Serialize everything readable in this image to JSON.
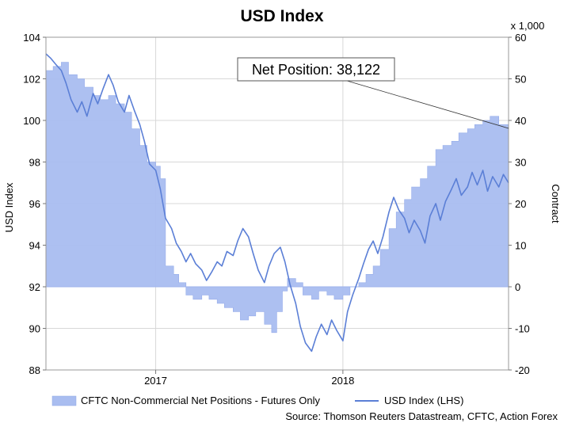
{
  "chart_data": {
    "type": "area+line",
    "title": "USD Index",
    "y_left_label": "USD Index",
    "y_right_label": "Contract",
    "y_right_multiplier": "x 1,000",
    "ylim_left": [
      88,
      104
    ],
    "ylim_right": [
      -20,
      60
    ],
    "y_left_ticks": [
      88,
      90,
      92,
      94,
      96,
      98,
      100,
      102,
      104
    ],
    "y_right_ticks": [
      -20,
      -10,
      0,
      10,
      20,
      30,
      40,
      50,
      60
    ],
    "x_range": [
      "2016-06-01",
      "2018-11-20"
    ],
    "x_ticks": [
      {
        "date": "2017-01-01",
        "label": "2017"
      },
      {
        "date": "2018-01-01",
        "label": "2018"
      }
    ],
    "grid": true,
    "legend_position": "bottom",
    "annotation": {
      "text": "Net Position: 38,122",
      "points_to": {
        "date": "2018-11-20",
        "value": 38.1
      }
    },
    "source": "Source: Thomson Reuters Datastream, CFTC, Action Forex",
    "series": [
      {
        "name": "CFTC Non-Commercial Net Positions - Futures Only",
        "axis": "right",
        "style": "area",
        "color": "#a9bdf0",
        "points": [
          [
            "2016-06-01",
            52
          ],
          [
            "2016-06-15",
            53
          ],
          [
            "2016-07-01",
            54
          ],
          [
            "2016-07-15",
            51
          ],
          [
            "2016-08-01",
            50
          ],
          [
            "2016-08-15",
            48
          ],
          [
            "2016-09-01",
            46
          ],
          [
            "2016-09-15",
            45
          ],
          [
            "2016-10-01",
            46
          ],
          [
            "2016-10-15",
            44
          ],
          [
            "2016-11-01",
            42
          ],
          [
            "2016-11-15",
            38
          ],
          [
            "2016-12-01",
            34
          ],
          [
            "2016-12-15",
            30
          ],
          [
            "2017-01-01",
            29
          ],
          [
            "2017-01-10",
            26
          ],
          [
            "2017-01-20",
            5
          ],
          [
            "2017-02-05",
            3
          ],
          [
            "2017-02-15",
            1
          ],
          [
            "2017-03-01",
            -2
          ],
          [
            "2017-03-15",
            -3
          ],
          [
            "2017-04-01",
            -2
          ],
          [
            "2017-04-15",
            -3
          ],
          [
            "2017-05-01",
            -4
          ],
          [
            "2017-05-15",
            -5
          ],
          [
            "2017-06-01",
            -6
          ],
          [
            "2017-06-15",
            -8
          ],
          [
            "2017-07-01",
            -7
          ],
          [
            "2017-07-15",
            -6
          ],
          [
            "2017-08-01",
            -9
          ],
          [
            "2017-08-15",
            -11
          ],
          [
            "2017-08-25",
            -6
          ],
          [
            "2017-09-05",
            -1
          ],
          [
            "2017-09-15",
            2
          ],
          [
            "2017-10-01",
            1
          ],
          [
            "2017-10-15",
            -2
          ],
          [
            "2017-11-01",
            -3
          ],
          [
            "2017-11-15",
            -1
          ],
          [
            "2017-12-01",
            -2
          ],
          [
            "2017-12-15",
            -3
          ],
          [
            "2018-01-01",
            -2
          ],
          [
            "2018-01-15",
            0
          ],
          [
            "2018-02-01",
            1
          ],
          [
            "2018-02-15",
            3
          ],
          [
            "2018-03-01",
            5
          ],
          [
            "2018-03-15",
            9
          ],
          [
            "2018-04-01",
            14
          ],
          [
            "2018-04-15",
            18
          ],
          [
            "2018-05-01",
            21
          ],
          [
            "2018-05-15",
            24
          ],
          [
            "2018-06-01",
            26
          ],
          [
            "2018-06-15",
            29
          ],
          [
            "2018-07-01",
            33
          ],
          [
            "2018-07-15",
            34
          ],
          [
            "2018-08-01",
            35
          ],
          [
            "2018-08-15",
            37
          ],
          [
            "2018-09-01",
            38
          ],
          [
            "2018-09-15",
            39
          ],
          [
            "2018-10-01",
            40
          ],
          [
            "2018-10-15",
            41
          ],
          [
            "2018-11-01",
            39
          ],
          [
            "2018-11-20",
            38
          ]
        ]
      },
      {
        "name": "USD Index (LHS)",
        "axis": "left",
        "style": "line",
        "color": "#5b7fd6",
        "points": [
          [
            "2016-06-01",
            103.2
          ],
          [
            "2016-06-10",
            103.0
          ],
          [
            "2016-06-20",
            102.7
          ],
          [
            "2016-07-01",
            102.4
          ],
          [
            "2016-07-10",
            101.8
          ],
          [
            "2016-07-20",
            101.0
          ],
          [
            "2016-08-01",
            100.4
          ],
          [
            "2016-08-10",
            100.9
          ],
          [
            "2016-08-20",
            100.2
          ],
          [
            "2016-09-01",
            101.3
          ],
          [
            "2016-09-10",
            100.8
          ],
          [
            "2016-09-20",
            101.5
          ],
          [
            "2016-10-01",
            102.2
          ],
          [
            "2016-10-10",
            101.7
          ],
          [
            "2016-10-20",
            100.9
          ],
          [
            "2016-11-01",
            100.4
          ],
          [
            "2016-11-10",
            101.2
          ],
          [
            "2016-11-20",
            100.5
          ],
          [
            "2016-12-01",
            99.8
          ],
          [
            "2016-12-10",
            99.0
          ],
          [
            "2016-12-20",
            97.9
          ],
          [
            "2017-01-01",
            97.6
          ],
          [
            "2017-01-10",
            96.7
          ],
          [
            "2017-01-20",
            95.3
          ],
          [
            "2017-02-01",
            94.8
          ],
          [
            "2017-02-10",
            94.1
          ],
          [
            "2017-02-20",
            93.7
          ],
          [
            "2017-03-01",
            93.2
          ],
          [
            "2017-03-10",
            93.6
          ],
          [
            "2017-03-20",
            93.1
          ],
          [
            "2017-04-01",
            92.8
          ],
          [
            "2017-04-10",
            92.3
          ],
          [
            "2017-04-20",
            92.7
          ],
          [
            "2017-05-01",
            93.2
          ],
          [
            "2017-05-10",
            93.0
          ],
          [
            "2017-05-20",
            93.7
          ],
          [
            "2017-06-01",
            93.5
          ],
          [
            "2017-06-10",
            94.2
          ],
          [
            "2017-06-20",
            94.8
          ],
          [
            "2017-07-01",
            94.4
          ],
          [
            "2017-07-10",
            93.6
          ],
          [
            "2017-07-20",
            92.8
          ],
          [
            "2017-08-01",
            92.2
          ],
          [
            "2017-08-10",
            93.0
          ],
          [
            "2017-08-20",
            93.6
          ],
          [
            "2017-09-01",
            93.9
          ],
          [
            "2017-09-10",
            93.2
          ],
          [
            "2017-09-20",
            92.1
          ],
          [
            "2017-10-01",
            91.2
          ],
          [
            "2017-10-10",
            90.1
          ],
          [
            "2017-10-20",
            89.3
          ],
          [
            "2017-11-01",
            88.9
          ],
          [
            "2017-11-10",
            89.6
          ],
          [
            "2017-11-20",
            90.2
          ],
          [
            "2017-12-01",
            89.7
          ],
          [
            "2017-12-10",
            90.4
          ],
          [
            "2017-12-20",
            89.9
          ],
          [
            "2018-01-01",
            89.4
          ],
          [
            "2018-01-10",
            90.8
          ],
          [
            "2018-01-20",
            91.6
          ],
          [
            "2018-02-01",
            92.4
          ],
          [
            "2018-02-10",
            93.1
          ],
          [
            "2018-02-20",
            93.8
          ],
          [
            "2018-03-01",
            94.2
          ],
          [
            "2018-03-10",
            93.6
          ],
          [
            "2018-03-20",
            94.4
          ],
          [
            "2018-04-01",
            95.6
          ],
          [
            "2018-04-10",
            96.3
          ],
          [
            "2018-04-20",
            95.7
          ],
          [
            "2018-05-01",
            95.3
          ],
          [
            "2018-05-10",
            94.6
          ],
          [
            "2018-05-20",
            95.2
          ],
          [
            "2018-06-01",
            94.7
          ],
          [
            "2018-06-10",
            94.1
          ],
          [
            "2018-06-20",
            95.4
          ],
          [
            "2018-07-01",
            96.0
          ],
          [
            "2018-07-10",
            95.2
          ],
          [
            "2018-07-20",
            96.1
          ],
          [
            "2018-08-01",
            96.7
          ],
          [
            "2018-08-10",
            97.2
          ],
          [
            "2018-08-20",
            96.4
          ],
          [
            "2018-09-01",
            96.8
          ],
          [
            "2018-09-10",
            97.5
          ],
          [
            "2018-09-20",
            96.9
          ],
          [
            "2018-10-01",
            97.6
          ],
          [
            "2018-10-10",
            96.6
          ],
          [
            "2018-10-20",
            97.3
          ],
          [
            "2018-11-01",
            96.8
          ],
          [
            "2018-11-10",
            97.4
          ],
          [
            "2018-11-20",
            97.0
          ]
        ]
      }
    ]
  }
}
